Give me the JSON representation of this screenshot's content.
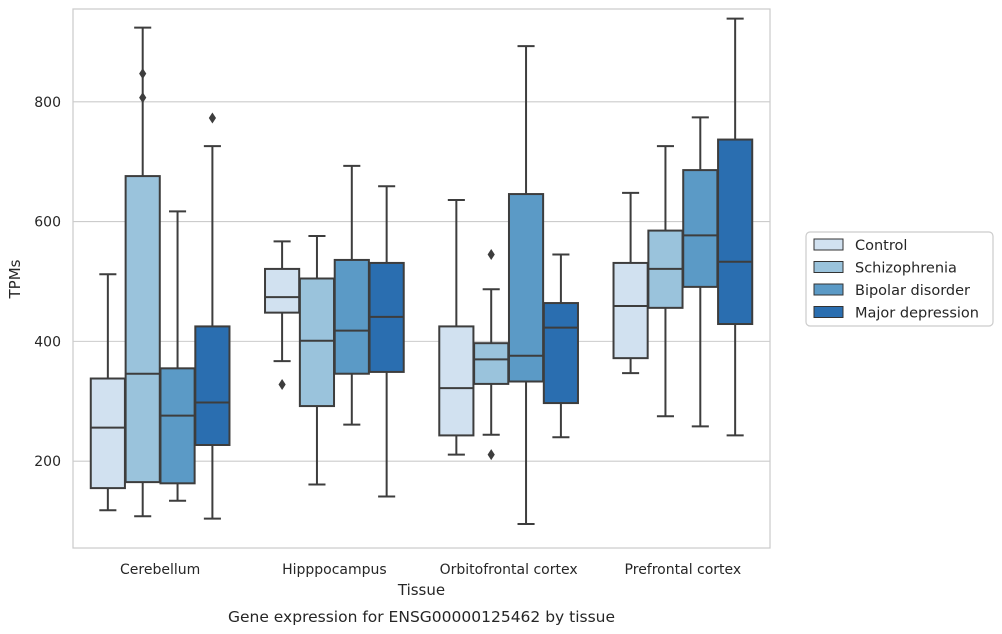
{
  "chart_data": {
    "type": "box",
    "title": "",
    "caption": "Gene expression for ENSG00000125462 by tissue",
    "xlabel": "Tissue",
    "ylabel": "TPMs",
    "ylim": [
      55,
      955
    ],
    "yticks": [
      200,
      400,
      600,
      800
    ],
    "grid": "horizontal",
    "legend_position": "right",
    "categories": [
      "Cerebellum",
      "Hipppocampus",
      "Orbitofrontal cortex",
      "Prefrontal cortex"
    ],
    "series": [
      {
        "name": "Control",
        "color": "#d1e1f0",
        "boxes": [
          {
            "whislo": 118,
            "q1": 155,
            "med": 256,
            "q3": 338,
            "whishi": 512,
            "fliers": []
          },
          {
            "whislo": 367,
            "q1": 448,
            "med": 474,
            "q3": 521,
            "whishi": 567,
            "fliers": [
              328
            ]
          },
          {
            "whislo": 211,
            "q1": 243,
            "med": 322,
            "q3": 425,
            "whishi": 636,
            "fliers": []
          },
          {
            "whislo": 347,
            "q1": 372,
            "med": 459,
            "q3": 531,
            "whishi": 648,
            "fliers": []
          }
        ]
      },
      {
        "name": "Schizophrenia",
        "color": "#9ac3dc",
        "boxes": [
          {
            "whislo": 108,
            "q1": 165,
            "med": 346,
            "q3": 676,
            "whishi": 924,
            "fliers": [
              807,
              847
            ]
          },
          {
            "whislo": 161,
            "q1": 292,
            "med": 401,
            "q3": 505,
            "whishi": 576,
            "fliers": []
          },
          {
            "whislo": 244,
            "q1": 329,
            "med": 370,
            "q3": 397,
            "whishi": 487,
            "fliers": [
              211,
              545
            ]
          },
          {
            "whislo": 275,
            "q1": 456,
            "med": 521,
            "q3": 585,
            "whishi": 726,
            "fliers": []
          }
        ]
      },
      {
        "name": "Bipolar disorder",
        "color": "#5b9ac6",
        "boxes": [
          {
            "whislo": 134,
            "q1": 163,
            "med": 276,
            "q3": 355,
            "whishi": 617,
            "fliers": []
          },
          {
            "whislo": 261,
            "q1": 346,
            "med": 418,
            "q3": 536,
            "whishi": 693,
            "fliers": []
          },
          {
            "whislo": 95,
            "q1": 333,
            "med": 376,
            "q3": 646,
            "whishi": 893,
            "fliers": []
          },
          {
            "whislo": 258,
            "q1": 491,
            "med": 577,
            "q3": 686,
            "whishi": 774,
            "fliers": []
          }
        ]
      },
      {
        "name": "Major depression",
        "color": "#2a6eb0",
        "boxes": [
          {
            "whislo": 104,
            "q1": 227,
            "med": 298,
            "q3": 425,
            "whishi": 726,
            "fliers": [
              773
            ]
          },
          {
            "whislo": 141,
            "q1": 349,
            "med": 441,
            "q3": 531,
            "whishi": 659,
            "fliers": []
          },
          {
            "whislo": 240,
            "q1": 297,
            "med": 423,
            "q3": 464,
            "whishi": 545,
            "fliers": []
          },
          {
            "whislo": 243,
            "q1": 429,
            "med": 533,
            "q3": 737,
            "whishi": 939,
            "fliers": []
          }
        ]
      }
    ]
  }
}
